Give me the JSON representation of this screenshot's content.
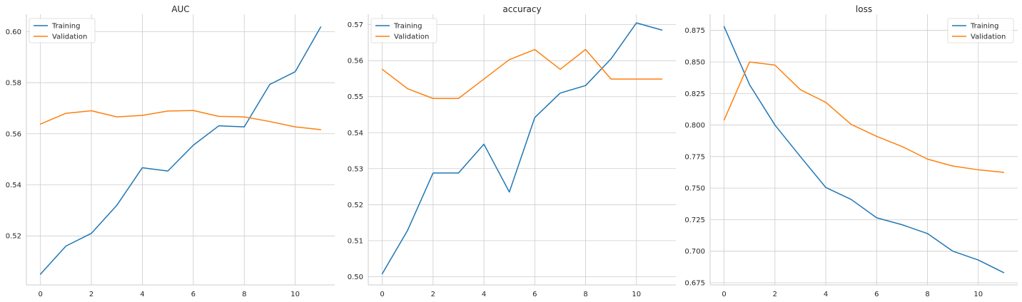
{
  "chart_data": [
    {
      "type": "line",
      "title": "AUC",
      "xlabel": "",
      "ylabel": "",
      "x": [
        0,
        1,
        2,
        3,
        4,
        5,
        6,
        7,
        8,
        9,
        10,
        11
      ],
      "xlim": [
        -0.55,
        11.55
      ],
      "ylim": [
        0.5008,
        0.6068
      ],
      "xticks": [
        0,
        2,
        4,
        6,
        8,
        10
      ],
      "yticks": [
        0.52,
        0.54,
        0.56,
        0.58,
        0.6
      ],
      "ytick_labels": [
        "0.52",
        "0.54",
        "0.56",
        "0.58",
        "0.60"
      ],
      "grid": true,
      "legend_position": "upper left",
      "series": [
        {
          "name": "Training",
          "color": "#1f77b4",
          "values": [
            0.505,
            0.516,
            0.521,
            0.532,
            0.5467,
            0.5454,
            0.5555,
            0.5631,
            0.5627,
            0.5793,
            0.5843,
            0.6018
          ]
        },
        {
          "name": "Validation",
          "color": "#ff7f0e",
          "values": [
            0.5638,
            0.568,
            0.569,
            0.5666,
            0.5672,
            0.5689,
            0.5691,
            0.5668,
            0.5666,
            0.5648,
            0.5627,
            0.5616
          ]
        }
      ]
    },
    {
      "type": "line",
      "title": "accuracy",
      "xlabel": "",
      "ylabel": "",
      "x": [
        0,
        1,
        2,
        3,
        4,
        5,
        6,
        7,
        8,
        9,
        10,
        11
      ],
      "xlim": [
        -0.55,
        11.55
      ],
      "ylim": [
        0.4977,
        0.5729
      ],
      "xticks": [
        0,
        2,
        4,
        6,
        8,
        10
      ],
      "yticks": [
        0.5,
        0.51,
        0.52,
        0.53,
        0.54,
        0.55,
        0.56,
        0.57
      ],
      "ytick_labels": [
        "0.50",
        "0.51",
        "0.52",
        "0.53",
        "0.54",
        "0.55",
        "0.56",
        "0.57"
      ],
      "grid": true,
      "legend_position": "upper left",
      "series": [
        {
          "name": "Training",
          "color": "#1f77b4",
          "values": [
            0.5008,
            0.5129,
            0.5288,
            0.5288,
            0.5368,
            0.5235,
            0.5442,
            0.551,
            0.5531,
            0.5605,
            0.5705,
            0.5685
          ]
        },
        {
          "name": "Validation",
          "color": "#ff7f0e",
          "values": [
            0.5576,
            0.5522,
            0.5495,
            0.5495,
            0.5549,
            0.5603,
            0.5631,
            0.5576,
            0.5631,
            0.5549,
            0.5549,
            0.5549
          ]
        }
      ]
    },
    {
      "type": "line",
      "title": "loss",
      "xlabel": "",
      "ylabel": "",
      "x": [
        0,
        1,
        2,
        3,
        4,
        5,
        6,
        7,
        8,
        9,
        10,
        11
      ],
      "xlim": [
        -0.55,
        11.55
      ],
      "ylim": [
        0.6733,
        0.8878
      ],
      "xticks": [
        0,
        2,
        4,
        6,
        8,
        10
      ],
      "yticks": [
        0.675,
        0.7,
        0.725,
        0.75,
        0.775,
        0.8,
        0.825,
        0.85,
        0.875
      ],
      "ytick_labels": [
        "0.675",
        "0.700",
        "0.725",
        "0.750",
        "0.775",
        "0.800",
        "0.825",
        "0.850",
        "0.875"
      ],
      "grid": true,
      "legend_position": "upper right",
      "series": [
        {
          "name": "Training",
          "color": "#1f77b4",
          "values": [
            0.878,
            0.832,
            0.8,
            0.775,
            0.7505,
            0.741,
            0.7265,
            0.721,
            0.714,
            0.7,
            0.693,
            0.683
          ]
        },
        {
          "name": "Validation",
          "color": "#ff7f0e",
          "values": [
            0.804,
            0.85,
            0.8475,
            0.828,
            0.818,
            0.8005,
            0.791,
            0.783,
            0.773,
            0.7675,
            0.7645,
            0.7625
          ]
        }
      ]
    }
  ]
}
